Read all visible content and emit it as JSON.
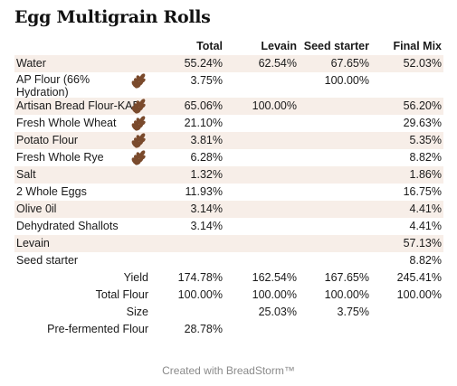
{
  "title": "Egg Multigrain Rolls",
  "headers": {
    "total": "Total",
    "levain": "Levain",
    "seed": "Seed starter",
    "final": "Final Mix"
  },
  "ingredients": [
    {
      "name": "Water",
      "total": "55.24%",
      "levain": "62.54%",
      "seed": "67.65%",
      "final": "52.03%"
    },
    {
      "name": "AP Flour (66% Hydration)",
      "total": "3.75%",
      "levain": "",
      "seed": "100.00%",
      "final": ""
    },
    {
      "name": "Artisan Bread Flour-KAF",
      "total": "65.06%",
      "levain": "100.00%",
      "seed": "",
      "final": "56.20%"
    },
    {
      "name": "Fresh Whole Wheat",
      "total": "21.10%",
      "levain": "",
      "seed": "",
      "final": "29.63%"
    },
    {
      "name": "Potato Flour",
      "total": "3.81%",
      "levain": "",
      "seed": "",
      "final": "5.35%"
    },
    {
      "name": "Fresh Whole Rye",
      "total": "6.28%",
      "levain": "",
      "seed": "",
      "final": "8.82%"
    },
    {
      "name": "Salt",
      "total": "1.32%",
      "levain": "",
      "seed": "",
      "final": "1.86%"
    },
    {
      "name": "2 Whole Eggs",
      "total": "11.93%",
      "levain": "",
      "seed": "",
      "final": "16.75%"
    },
    {
      "name": "Olive 0il",
      "total": "3.14%",
      "levain": "",
      "seed": "",
      "final": "4.41%"
    },
    {
      "name": "Dehydrated Shallots",
      "total": "3.14%",
      "levain": "",
      "seed": "",
      "final": "4.41%"
    },
    {
      "name": "Levain",
      "total": "",
      "levain": "",
      "seed": "",
      "final": "57.13%"
    },
    {
      "name": "Seed starter",
      "total": "",
      "levain": "",
      "seed": "",
      "final": "8.82%"
    }
  ],
  "summary": [
    {
      "name": "Yield",
      "total": "174.78%",
      "levain": "162.54%",
      "seed": "167.65%",
      "final": "245.41%"
    },
    {
      "name": "Total Flour",
      "total": "100.00%",
      "levain": "100.00%",
      "seed": "100.00%",
      "final": "100.00%"
    },
    {
      "name": "Size",
      "total": "",
      "levain": "25.03%",
      "seed": "3.75%",
      "final": ""
    },
    {
      "name": "Pre-fermented Flour",
      "total": "28.78%",
      "levain": "",
      "seed": "",
      "final": ""
    }
  ],
  "footer": "Created with BreadStorm™",
  "colors": {
    "row_shade": "#f7eee8",
    "grain_icon": "#7a4a2c"
  }
}
